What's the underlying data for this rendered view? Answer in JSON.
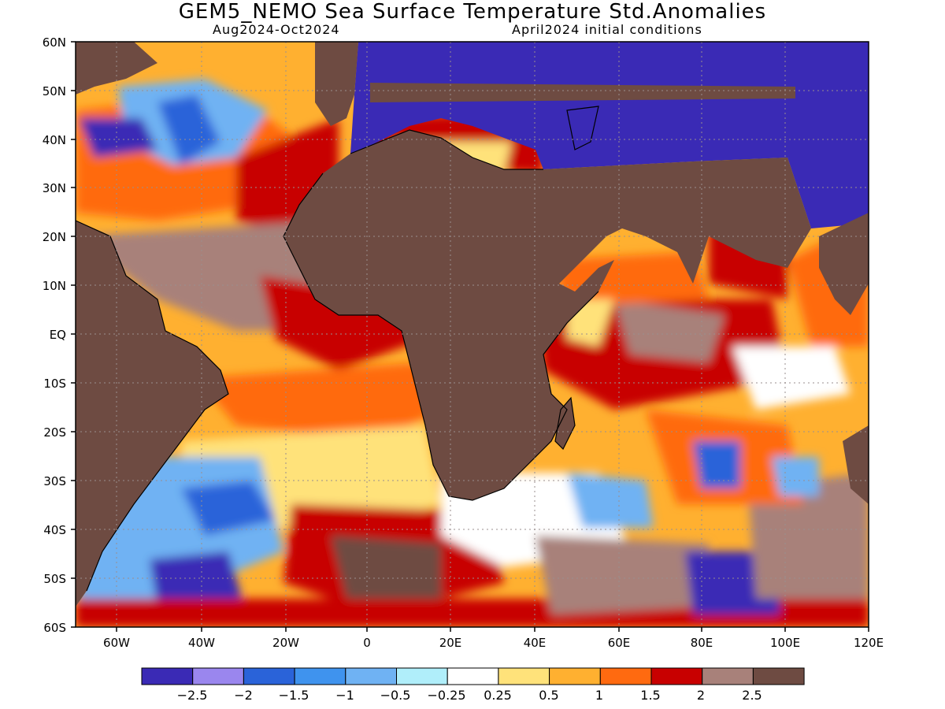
{
  "title": "GEM5_NEMO Sea Surface Temperature Std.Anomalies",
  "subtitle_left": "Aug2024-Oct2024",
  "subtitle_right": "April2024 initial conditions",
  "latitude_labels": [
    "60N",
    "50N",
    "40N",
    "30N",
    "20N",
    "10N",
    "EQ",
    "10S",
    "20S",
    "30S",
    "40S",
    "50S",
    "60S"
  ],
  "longitude_labels": [
    "60W",
    "40W",
    "20W",
    "0",
    "20E",
    "40E",
    "60E",
    "80E",
    "100E",
    "120E"
  ],
  "colorbar": {
    "colors": [
      "#3a2ab5",
      "#9a86ee",
      "#2a63d9",
      "#3f93ee",
      "#6fb2f3",
      "#b0eefa",
      "#ffffff",
      "#ffe27a",
      "#ffb030",
      "#ff6a10",
      "#c80000",
      "#a8817a",
      "#6e4b42"
    ],
    "tick_labels": [
      "−2.5",
      "−2",
      "−1.5",
      "−1",
      "−0.5",
      "−0.25",
      "0.25",
      "0.5",
      "1",
      "1.5",
      "2",
      "2.5"
    ]
  },
  "colors": {
    "land": "#6e4b42",
    "inland_mask": "#3a2ab5",
    "gridline": "#9a8f8f"
  }
}
